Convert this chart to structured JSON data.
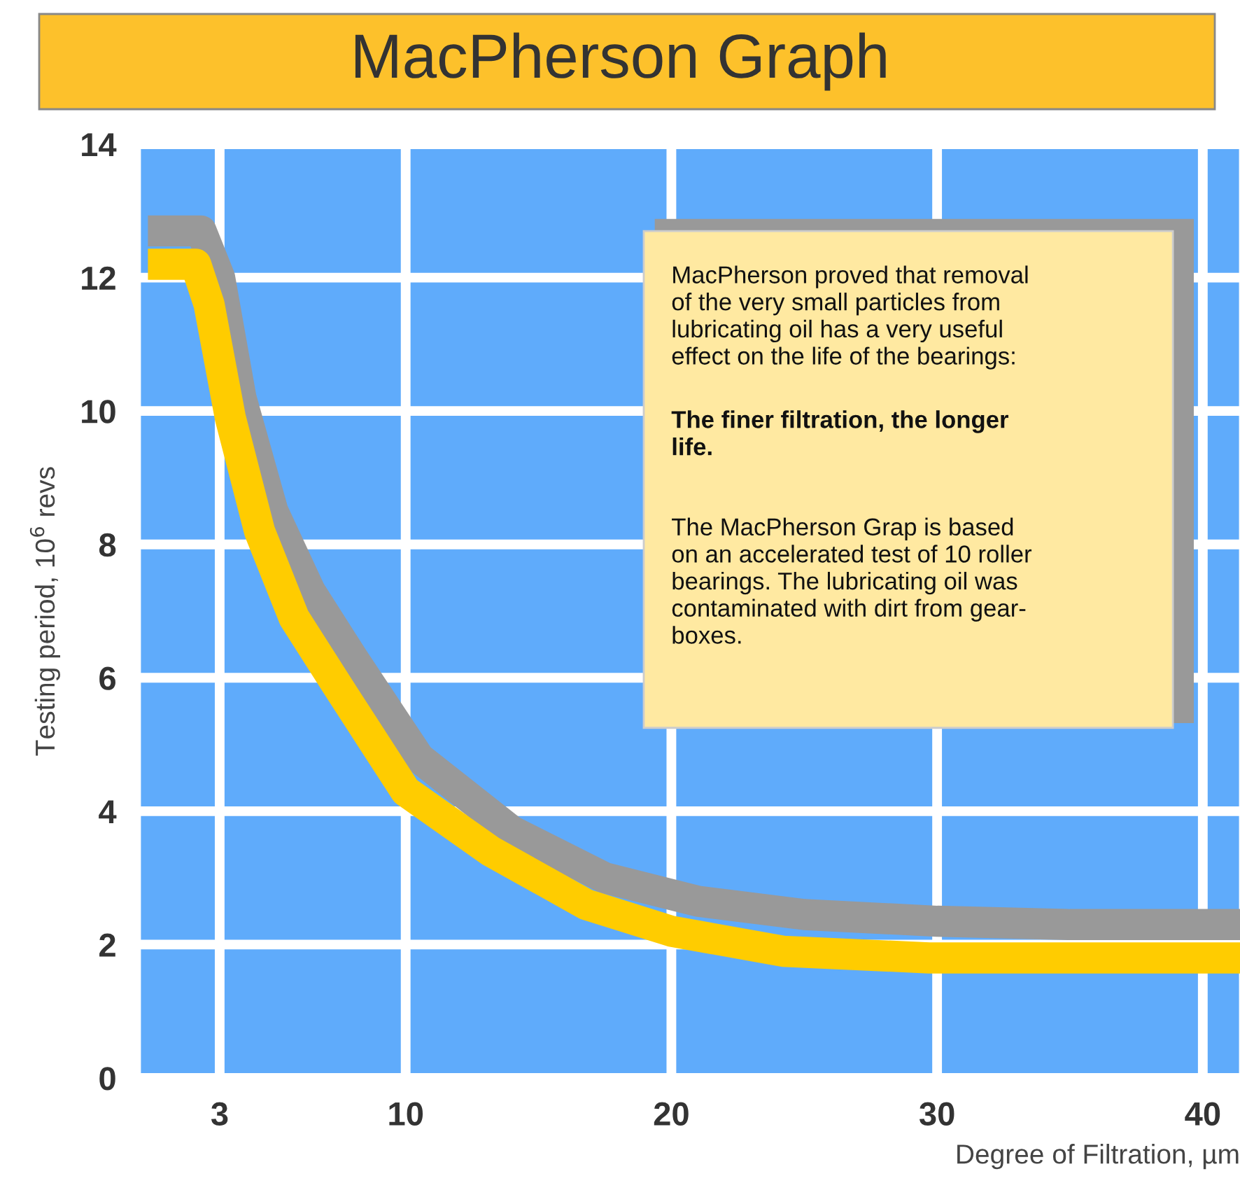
{
  "chart_data": {
    "type": "line",
    "title": "MacPherson Graph",
    "xlabel": "Degree of Filtration, µm",
    "ylabel": "Testing period, 10$^{6}$ revs",
    "series": [
      {
        "color": "#999999",
        "x": [
          0.3,
          2.3,
          3.0,
          3.8,
          5.0,
          6.4,
          8.0,
          10.5,
          14,
          17.5,
          21,
          25,
          30,
          35,
          41.4
        ],
        "values": [
          12.7,
          12.7,
          12.0,
          10.2,
          8.5,
          7.3,
          6.3,
          4.8,
          3.7,
          3.0,
          2.65,
          2.45,
          2.35,
          2.3,
          2.3
        ]
      },
      {
        "color": "#ffcc00",
        "x": [
          0.3,
          2.1,
          2.6,
          3.4,
          4.5,
          5.8,
          7.4,
          10,
          13.2,
          16.8,
          20,
          24.2,
          29.7,
          34.2,
          41.4
        ],
        "values": [
          12.2,
          12.2,
          11.6,
          9.9,
          8.2,
          6.9,
          5.9,
          4.3,
          3.4,
          2.6,
          2.2,
          1.9,
          1.8,
          1.8,
          1.8
        ]
      }
    ],
    "xlim": [
      0,
      41.4
    ],
    "ylim": [
      0,
      14
    ],
    "xticks": [
      3,
      10,
      20,
      30,
      40
    ],
    "yticks": [
      0,
      2,
      4,
      6,
      8,
      10,
      12,
      14
    ],
    "grid": true,
    "marker": "none",
    "line_style": "solid",
    "annotations": [
      "MacPherson proved that removal\nof the very small particles from\nlubricating oil has a very useful\neffect on the life of the bearings:",
      "The finer filtration, the longer\nlife.",
      "The MacPherson Grap is based\non an accelerated test of 10 roller\nbearings. The lubricating oil was\ncontaminated with dirt from gear-\nboxes."
    ]
  }
}
